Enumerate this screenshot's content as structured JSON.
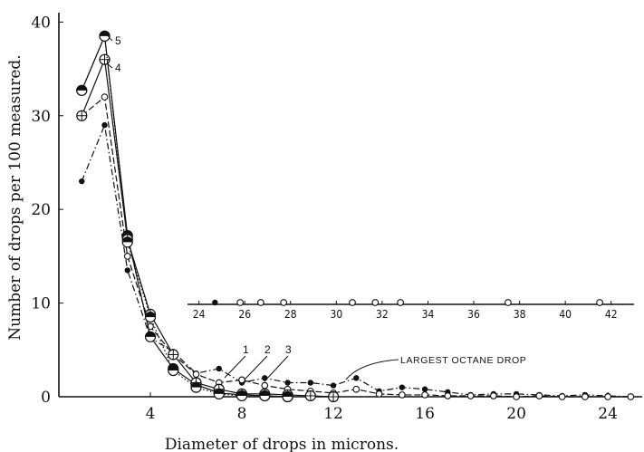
{
  "chart_data": {
    "type": "line",
    "xlabel": "Diameter of drops in microns.",
    "ylabel": "Number of drops per 100 measured.",
    "xlim": [
      0,
      25.5
    ],
    "ylim": [
      0,
      41
    ],
    "x_ticks": [
      4,
      8,
      12,
      16,
      20,
      24
    ],
    "y_ticks": [
      0,
      10,
      20,
      30,
      40
    ],
    "grid": false,
    "series": [
      {
        "name": "1",
        "marker": "dot",
        "line": "dashdot",
        "x": [
          1,
          2,
          3,
          4,
          5,
          6,
          7,
          8,
          9,
          10,
          11,
          12,
          13,
          14,
          15,
          16,
          17,
          18,
          19,
          20,
          21,
          22,
          23,
          24,
          25
        ],
        "y": [
          23,
          29,
          13.5,
          6.3,
          4.8,
          2.5,
          3,
          1.5,
          2,
          1.5,
          1.5,
          1.2,
          2,
          0.6,
          1,
          0.8,
          0.5,
          0.2,
          0.3,
          0.3,
          0.2,
          0.1,
          0.2,
          0.1,
          0
        ]
      },
      {
        "name": "2",
        "marker": "open-circle",
        "line": "dashed",
        "x": [
          1,
          2,
          3,
          4,
          5,
          6,
          7,
          8,
          9,
          10,
          11,
          12,
          13,
          14,
          15,
          16,
          17,
          18,
          19,
          20,
          21,
          22,
          23,
          24,
          25
        ],
        "y": [
          30,
          32,
          15,
          7.5,
          4.5,
          2.4,
          1.5,
          1.8,
          1.2,
          0.8,
          0.6,
          0.4,
          0.8,
          0.3,
          0.2,
          0.2,
          0.1,
          0.1,
          0.1,
          0,
          0.1,
          0,
          0,
          0,
          0
        ]
      },
      {
        "name": "3",
        "marker": "half-circle",
        "line": "solid",
        "x": [
          1,
          2,
          3,
          4,
          5,
          6,
          7,
          8,
          9,
          10
        ],
        "y": [
          32.7,
          38.5,
          17.2,
          6.4,
          3,
          1.3,
          0.4,
          0.2,
          0.1,
          0
        ]
      },
      {
        "name": "4",
        "marker": "crossed-circle",
        "line": "solid",
        "x": [
          1,
          2,
          3,
          4,
          5,
          6,
          7,
          8,
          9,
          10,
          11,
          12
        ],
        "y": [
          30,
          36,
          16.8,
          8.8,
          4.5,
          1.5,
          0.8,
          0.3,
          0.3,
          0.2,
          0.1,
          0
        ]
      },
      {
        "name": "5",
        "marker": "half-circle",
        "line": "dotted",
        "x": [
          1,
          2,
          3,
          4,
          5,
          6,
          7,
          8,
          9,
          10
        ],
        "y": [
          32.7,
          38.5,
          16.5,
          8.5,
          2.8,
          1,
          0.3,
          0.1,
          0.1,
          0
        ]
      }
    ],
    "inset": {
      "x_ticks": [
        24,
        26,
        28,
        30,
        32,
        34,
        36,
        38,
        40,
        42
      ],
      "xlim": [
        23.5,
        43
      ],
      "points": [
        {
          "x": 24.7,
          "marker": "dot"
        },
        {
          "x": 25.8,
          "marker": "open-circle"
        },
        {
          "x": 26.7,
          "marker": "open-circle"
        },
        {
          "x": 27.7,
          "marker": "open-circle"
        },
        {
          "x": 30.7,
          "marker": "open-circle"
        },
        {
          "x": 31.7,
          "marker": "open-circle"
        },
        {
          "x": 32.8,
          "marker": "open-circle"
        },
        {
          "x": 37.5,
          "marker": "open-circle"
        },
        {
          "x": 41.5,
          "marker": "open-circle"
        }
      ]
    },
    "annotations": {
      "label_5": "5",
      "label_4": "4",
      "labels_123": [
        "1",
        "2",
        "3"
      ],
      "largest": "LARGEST OCTANE DROP"
    }
  }
}
